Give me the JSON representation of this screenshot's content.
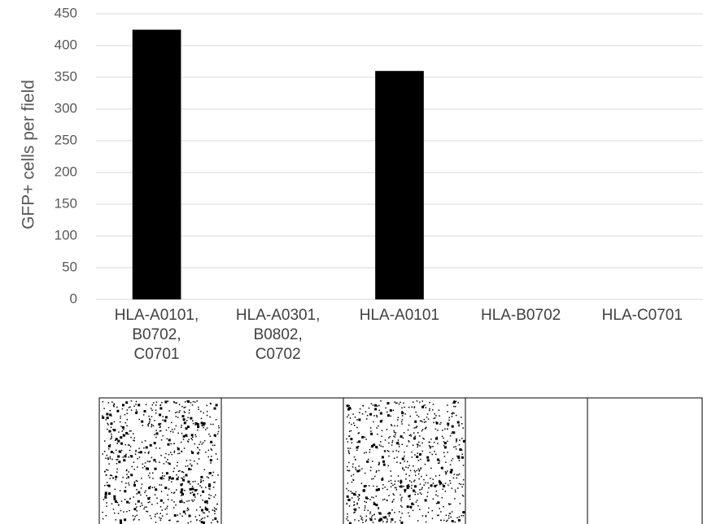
{
  "chart_data": {
    "type": "bar",
    "y_label": "GFP+ cells per field",
    "categories": [
      "HLA-A0101,\nB0702,\nC0701",
      "HLA-A0301,\nB0802,\nC0702",
      "HLA-A0101",
      "HLA-B0702",
      "HLA-C0701"
    ],
    "values": [
      425,
      0,
      360,
      0,
      0
    ],
    "color": "#000000",
    "ylim": [
      0,
      450
    ],
    "yticks": [
      0,
      50,
      100,
      150,
      200,
      250,
      300,
      350,
      400,
      450
    ],
    "grid": true
  }
}
